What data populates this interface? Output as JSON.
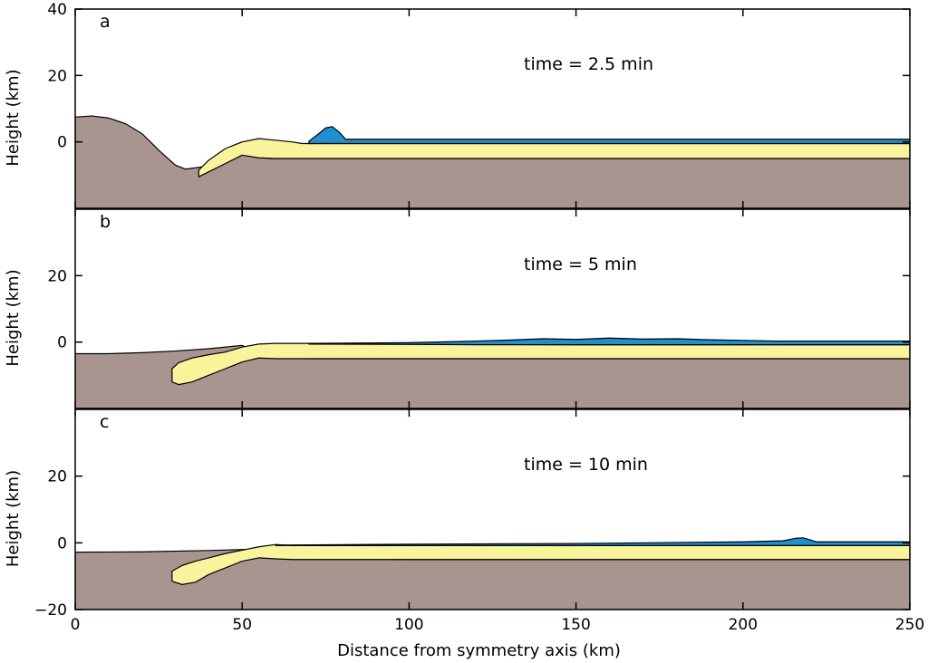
{
  "chart_data": [
    {
      "type": "area",
      "panel_label": "a",
      "annotation": "time = 2.5 min",
      "xlabel": "",
      "ylabel": "Height (km)",
      "xlim": [
        0,
        250
      ],
      "ylim": [
        -20,
        40
      ],
      "yticks": [
        0,
        20,
        40
      ],
      "xticks": [
        0,
        50,
        100,
        150,
        200,
        250
      ],
      "show_xtick_labels": false,
      "series": [
        {
          "material": "basement",
          "color": "#a89590",
          "x": [
            0,
            5,
            10,
            15,
            20,
            25,
            30,
            33,
            38,
            45,
            50,
            54,
            58,
            65,
            70,
            100,
            150,
            200,
            250
          ],
          "y": [
            7.5,
            7.8,
            7.2,
            5.5,
            2.5,
            -2.5,
            -7,
            -8.2,
            -7.5,
            -2.5,
            0,
            -3.5,
            -5,
            -5,
            -5,
            -5,
            -5,
            -5,
            -5
          ]
        },
        {
          "material": "sediment",
          "color": "#f9f39c",
          "x": [
            37,
            40,
            45,
            50,
            55,
            60,
            65,
            68,
            100,
            150,
            200,
            250
          ],
          "y_top": [
            -8.5,
            -5.5,
            -2,
            0,
            1,
            0.5,
            0,
            -0.5,
            -0.5,
            -0.5,
            -0.5,
            -0.5
          ],
          "y_bottom": [
            -10.5,
            -9,
            -6.5,
            -4,
            -4.8,
            -5,
            -5,
            -5,
            -5,
            -5,
            -5,
            -5
          ]
        },
        {
          "material": "water",
          "color": "#1e8fcf",
          "x": [
            70,
            73,
            75,
            77,
            79,
            81,
            100,
            150,
            200,
            250
          ],
          "y_top": [
            0.2,
            2.5,
            4.2,
            4.6,
            3,
            0.8,
            0.8,
            0.8,
            0.8,
            0.8
          ],
          "y_bottom": [
            -0.5,
            -0.5,
            -0.5,
            -0.5,
            -0.5,
            -0.5,
            -0.5,
            -0.5,
            -0.5,
            -0.5
          ]
        }
      ]
    },
    {
      "type": "area",
      "panel_label": "b",
      "annotation": "time = 5 min",
      "xlabel": "",
      "ylabel": "Height (km)",
      "xlim": [
        0,
        250
      ],
      "ylim": [
        -20,
        40
      ],
      "yticks": [
        0,
        20
      ],
      "xticks": [
        0,
        50,
        100,
        150,
        200,
        250
      ],
      "show_xtick_labels": false,
      "series": [
        {
          "material": "basement",
          "color": "#a89590",
          "x": [
            0,
            10,
            20,
            30,
            40,
            50,
            53,
            55,
            60,
            70,
            100,
            150,
            200,
            250
          ],
          "y": [
            -3.5,
            -3.5,
            -3.2,
            -2.7,
            -2,
            -1,
            -2.5,
            -4,
            -4.8,
            -5,
            -5,
            -5,
            -5,
            -5
          ]
        },
        {
          "material": "sediment",
          "color": "#f9f39c",
          "x": [
            29,
            31,
            35,
            40,
            45,
            50,
            55,
            60,
            70,
            100,
            150,
            200,
            250
          ],
          "y_top": [
            -8,
            -6.2,
            -4.8,
            -3.8,
            -3,
            -1.5,
            -0.6,
            -0.4,
            -0.4,
            -0.6,
            -0.8,
            -0.8,
            -0.8
          ],
          "y_bottom": [
            -12,
            -12.8,
            -12,
            -10,
            -8,
            -6,
            -4.8,
            -5,
            -5,
            -5,
            -5,
            -5,
            -5
          ]
        },
        {
          "material": "water",
          "color": "#1e8fcf",
          "x": [
            70,
            100,
            120,
            130,
            140,
            150,
            160,
            170,
            180,
            190,
            200,
            210,
            250
          ],
          "y_top": [
            -0.4,
            -0.2,
            0.3,
            0.6,
            1.0,
            0.8,
            1.2,
            0.9,
            1.0,
            0.7,
            0.5,
            0.3,
            0.3
          ],
          "y_bottom": [
            -0.6,
            -0.7,
            -0.8,
            -0.8,
            -0.8,
            -0.8,
            -0.8,
            -0.8,
            -0.8,
            -0.8,
            -0.8,
            -0.8,
            -0.8
          ]
        }
      ]
    },
    {
      "type": "area",
      "panel_label": "c",
      "annotation": "time = 10 min",
      "xlabel": "Distance from symmetry axis (km)",
      "ylabel": "Height (km)",
      "xlim": [
        0,
        250
      ],
      "ylim": [
        -20,
        40
      ],
      "yticks": [
        -20,
        0,
        20
      ],
      "xticks": [
        0,
        50,
        100,
        150,
        200,
        250
      ],
      "xtick_labels": [
        "0",
        "50",
        "100",
        "150",
        "200",
        "250"
      ],
      "show_xtick_labels": true,
      "series": [
        {
          "material": "basement",
          "color": "#a89590",
          "x": [
            0,
            20,
            40,
            50,
            55,
            60,
            70,
            100,
            150,
            200,
            250
          ],
          "y": [
            -2.8,
            -2.7,
            -2.3,
            -2,
            -2,
            -3.8,
            -4.8,
            -5,
            -5,
            -5,
            -5
          ]
        },
        {
          "material": "sediment",
          "color": "#f9f39c",
          "x": [
            29,
            32,
            36,
            40,
            45,
            50,
            55,
            60,
            65,
            100,
            150,
            200,
            250
          ],
          "y_top": [
            -8.5,
            -6.8,
            -5.5,
            -4.5,
            -3.2,
            -2.2,
            -1.2,
            -0.5,
            -0.8,
            -0.8,
            -0.8,
            -0.8,
            -0.8
          ],
          "y_bottom": [
            -11.5,
            -12.5,
            -11.8,
            -9.5,
            -7.5,
            -5.5,
            -4.5,
            -4.8,
            -5,
            -5,
            -5,
            -5,
            -5
          ]
        },
        {
          "material": "water",
          "color": "#1e8fcf",
          "x": [
            60,
            100,
            150,
            200,
            212,
            216,
            218,
            222,
            250
          ],
          "y_top": [
            -0.7,
            -0.4,
            -0.2,
            0.3,
            0.6,
            1.4,
            1.5,
            0.3,
            0.3
          ],
          "y_bottom": [
            -0.8,
            -0.8,
            -0.8,
            -0.8,
            -0.8,
            -0.8,
            -0.8,
            -0.8,
            -0.8
          ]
        }
      ]
    }
  ]
}
